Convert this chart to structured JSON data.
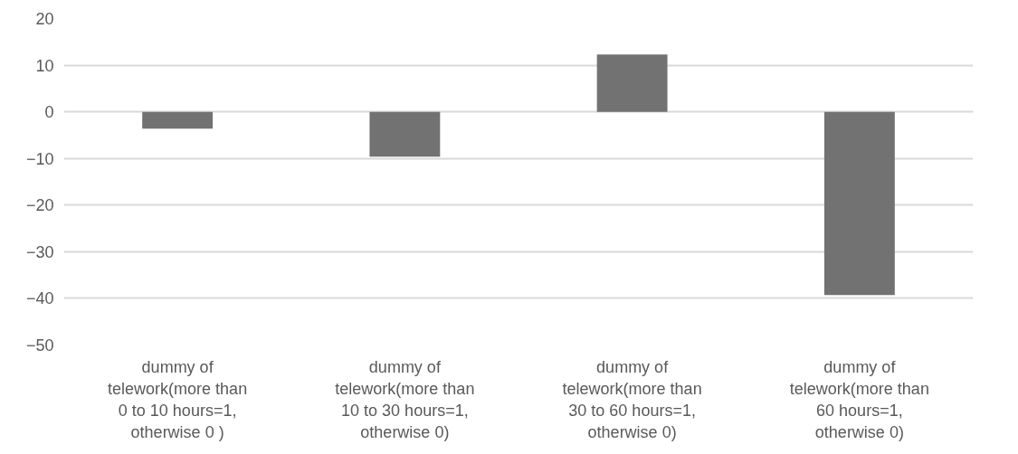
{
  "chart_data": {
    "type": "bar",
    "categories": [
      "dummy of telework(more than 0 to 10 hours=1, otherwise 0 )",
      "dummy of telework(more than 10 to 30 hours=1, otherwise 0)",
      "dummy of telework(more than 30 to 60 hours=1, otherwise 0)",
      "dummy of telework(more than 60 hours=1, otherwise 0)"
    ],
    "values": [
      -3.6,
      -9.6,
      12.3,
      -39.3
    ],
    "color": "#727272",
    "ylim": [
      -50,
      20
    ],
    "yticks": [
      -50,
      -40,
      -30,
      -20,
      -10,
      0,
      10,
      20
    ],
    "grid": "y"
  }
}
